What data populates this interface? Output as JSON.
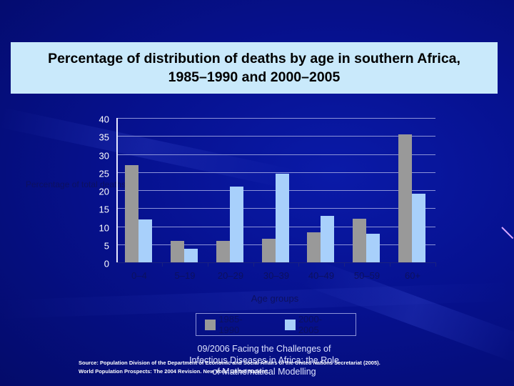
{
  "slide": {
    "title_line1": "Percentage of distribution of deaths by age in southern Africa,",
    "title_line2": "1985–1990 and 2000–2005",
    "footer_line1": "09/2006 Facing the Challenges of",
    "footer_line2": "Infectious Diseases in Africa: the Role",
    "footer_line3": "of Mathematical Modelling",
    "source_line1": "Source:  Population Division of the Department of Economic and Social Affairs of the United Nations Secretariat (2005).",
    "source_line2": "World Population Prospects: The 2004 Revision. New York: United Nations."
  },
  "colors": {
    "background": "#06118f",
    "title_box": "#c9e9fb",
    "series_1985": "#999999",
    "series_2000": "#a8d0fb",
    "gridline": "#8c93d8"
  },
  "chart_data": {
    "type": "bar",
    "title": "Percentage of distribution of deaths by age in southern Africa, 1985–1990 and 2000–2005",
    "xlabel": "Age groups",
    "ylabel": "Percentage of total deaths",
    "categories": [
      "0–4",
      "5–19",
      "20–29",
      "30–39",
      "40–49",
      "50–59",
      "60+"
    ],
    "series": [
      {
        "name": "1985-1990",
        "color": "#999999",
        "values": [
          27,
          6,
          6,
          6.5,
          8.3,
          12,
          35.5
        ]
      },
      {
        "name": "2000-2005",
        "color": "#a8d0fb",
        "values": [
          11.8,
          3.7,
          21,
          24.5,
          12.8,
          8,
          19
        ]
      }
    ],
    "ylim": [
      0,
      40
    ],
    "yticks": [
      "0",
      "5",
      "10",
      "15",
      "20",
      "25",
      "30",
      "35",
      "40"
    ],
    "grid": true,
    "legend_position": "bottom"
  }
}
